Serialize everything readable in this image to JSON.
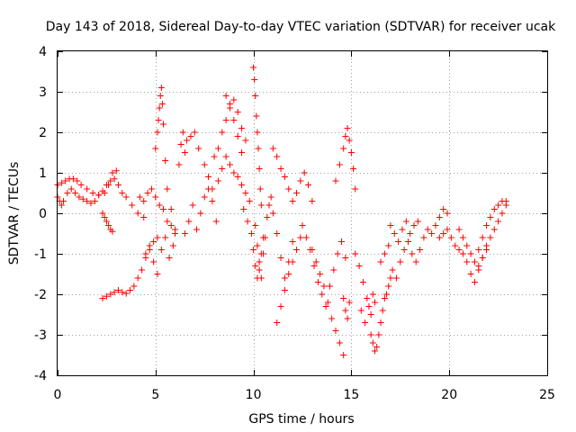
{
  "chart_data": {
    "type": "scatter",
    "title": "Day 143 of 2018, Sidereal Day-to-day VTEC variation (SDTVAR) for receiver ucak",
    "xlabel": "GPS time / hours",
    "ylabel": "SDTVAR / TECUs",
    "xlim": [
      0,
      25
    ],
    "ylim": [
      -4,
      4
    ],
    "xticks": [
      0,
      5,
      10,
      15,
      20,
      25
    ],
    "yticks": [
      -4,
      -3,
      -2,
      -1,
      0,
      1,
      2,
      3,
      4
    ],
    "grid": true,
    "marker": "+",
    "series": [
      {
        "name": "SDTVAR",
        "color": "#ff0000",
        "x": [
          0.0,
          0.1,
          0.2,
          0.3,
          0.5,
          0.7,
          0.9,
          1.1,
          1.3,
          1.5,
          1.7,
          1.9,
          2.1,
          2.3,
          2.5,
          2.7,
          2.9,
          3.1,
          3.3,
          3.5,
          3.8,
          4.1,
          4.4,
          0.0,
          0.2,
          0.4,
          0.6,
          0.8,
          1.0,
          1.2,
          1.5,
          1.8,
          2.1,
          2.4,
          2.6,
          2.8,
          3.0,
          2.3,
          2.5,
          2.7,
          2.9,
          3.1,
          3.3,
          3.5,
          3.7,
          3.9,
          4.1,
          4.3,
          4.5,
          4.7,
          4.9,
          5.1,
          2.3,
          2.4,
          2.5,
          2.6,
          2.7,
          2.8,
          4.2,
          4.4,
          4.6,
          4.8,
          5.0,
          5.2,
          5.4,
          5.6,
          5.8,
          6.0,
          4.5,
          4.7,
          4.9,
          5.1,
          5.3,
          5.5,
          5.7,
          5.9,
          5.0,
          5.1,
          5.15,
          5.2,
          5.25,
          5.3,
          5.35,
          5.4,
          5.5,
          5.6,
          5.8,
          6.0,
          6.2,
          6.3,
          6.4,
          6.5,
          6.6,
          6.8,
          7.0,
          7.2,
          7.5,
          7.7,
          7.9,
          6.5,
          6.7,
          6.9,
          7.1,
          7.3,
          7.5,
          7.7,
          7.9,
          8.1,
          8.0,
          8.2,
          8.4,
          8.6,
          8.8,
          9.0,
          9.2,
          9.4,
          9.6,
          8.2,
          8.4,
          8.6,
          8.8,
          9.0,
          9.2,
          9.4,
          9.6,
          9.8,
          8.6,
          8.8,
          9.0,
          9.2,
          9.4,
          9.5,
          9.7,
          9.9,
          10.0,
          10.1,
          10.2,
          10.3,
          10.4,
          10.5,
          10.0,
          10.05,
          10.1,
          10.15,
          10.2,
          10.25,
          10.3,
          10.35,
          10.4,
          10.1,
          10.2,
          10.3,
          10.4,
          10.5,
          10.6,
          10.7,
          10.8,
          10.9,
          11.0,
          11.2,
          11.4,
          11.6,
          11.8,
          12.0,
          11.0,
          11.2,
          11.4,
          11.6,
          11.8,
          12.0,
          12.2,
          12.4,
          12.6,
          12.8,
          13.0,
          11.2,
          11.4,
          11.6,
          11.8,
          12.0,
          12.2,
          12.4,
          12.5,
          12.7,
          12.9,
          13.1,
          13.3,
          13.5,
          13.7,
          13.9,
          14.1,
          14.3,
          14.5,
          14.7,
          13.0,
          13.2,
          13.4,
          13.6,
          13.8,
          14.0,
          14.2,
          14.4,
          14.6,
          14.2,
          14.4,
          14.6,
          14.7,
          14.8,
          14.9,
          15.0,
          15.1,
          15.2,
          14.6,
          14.7,
          14.8,
          14.9,
          15.2,
          15.4,
          15.6,
          15.8,
          16.0,
          16.2,
          15.5,
          15.7,
          15.9,
          16.1,
          16.0,
          16.1,
          16.2,
          16.3,
          16.4,
          16.5,
          16.6,
          16.7,
          16.8,
          16.9,
          17.0,
          16.5,
          16.7,
          16.9,
          17.1,
          17.3,
          17.5,
          17.7,
          17.9,
          18.1,
          18.3,
          18.5,
          18.7,
          18.9,
          19.1,
          19.3,
          19.5,
          19.7,
          19.9,
          17.0,
          17.2,
          17.4,
          17.6,
          17.8,
          18.0,
          18.2,
          18.4,
          19.5,
          19.7,
          19.9,
          20.1,
          20.3,
          20.5,
          20.7,
          20.9,
          21.1,
          21.3,
          21.5,
          21.7,
          21.9,
          20.5,
          20.7,
          20.9,
          21.1,
          21.3,
          21.5,
          21.7,
          21.9,
          22.1,
          22.3,
          22.5,
          22.7,
          22.9,
          21.5,
          21.7,
          21.9,
          22.1,
          22.3,
          22.5,
          22.7,
          22.9
        ],
        "y": [
          0.4,
          0.3,
          0.2,
          0.3,
          0.5,
          0.6,
          0.5,
          0.4,
          0.35,
          0.3,
          0.25,
          0.3,
          0.45,
          0.55,
          0.7,
          0.8,
          0.85,
          0.7,
          0.5,
          0.4,
          0.2,
          0.0,
          -0.1,
          0.7,
          0.75,
          0.8,
          0.85,
          0.85,
          0.8,
          0.7,
          0.6,
          0.5,
          0.45,
          0.5,
          0.7,
          1.0,
          1.05,
          -2.1,
          -2.05,
          -2.0,
          -1.95,
          -1.9,
          -1.95,
          -1.98,
          -1.9,
          -1.8,
          -1.6,
          -1.4,
          -1.1,
          -0.9,
          -0.7,
          -0.6,
          0.0,
          -0.1,
          -0.2,
          -0.3,
          -0.4,
          -0.45,
          0.4,
          0.3,
          0.5,
          0.6,
          0.4,
          0.2,
          0.1,
          -0.2,
          -0.3,
          -0.5,
          -1.0,
          -0.8,
          -1.2,
          -1.5,
          -0.9,
          -0.6,
          -1.1,
          -0.8,
          1.6,
          2.0,
          2.3,
          2.6,
          2.9,
          3.1,
          2.7,
          2.2,
          1.3,
          0.6,
          0.1,
          -0.4,
          1.2,
          1.7,
          2.0,
          1.5,
          1.8,
          1.9,
          2.0,
          1.6,
          1.2,
          0.9,
          0.6,
          -0.5,
          -0.2,
          0.2,
          -0.4,
          0.0,
          0.4,
          0.6,
          0.3,
          -0.2,
          1.4,
          1.6,
          2.0,
          2.3,
          2.6,
          2.8,
          2.5,
          2.1,
          1.8,
          0.8,
          1.1,
          1.4,
          1.2,
          1.0,
          0.9,
          0.7,
          0.5,
          0.3,
          2.9,
          2.7,
          2.3,
          1.9,
          1.5,
          0.1,
          -0.2,
          -0.5,
          -0.9,
          -1.3,
          -1.6,
          -1.4,
          -1.0,
          -0.6,
          3.6,
          3.3,
          2.9,
          2.4,
          2.0,
          1.6,
          1.1,
          0.6,
          0.2,
          -0.3,
          -0.8,
          -1.2,
          -1.6,
          -1.0,
          -0.6,
          -0.1,
          0.2,
          0.4,
          0.0,
          -0.5,
          -1.1,
          -1.6,
          -1.2,
          -0.7,
          1.6,
          1.4,
          1.1,
          0.9,
          0.6,
          0.3,
          0.5,
          0.8,
          1.0,
          0.7,
          0.3,
          -2.7,
          -2.3,
          -1.9,
          -1.5,
          -1.2,
          -0.9,
          -0.6,
          -0.3,
          -0.6,
          -0.9,
          -1.3,
          -1.7,
          -2.0,
          -2.3,
          -1.8,
          -1.4,
          -1.0,
          -0.7,
          -1.1,
          -0.9,
          -1.2,
          -1.5,
          -1.8,
          -2.2,
          -2.6,
          -2.9,
          -3.2,
          -3.5,
          0.8,
          1.2,
          1.6,
          1.9,
          2.1,
          1.8,
          1.5,
          1.1,
          0.6,
          -2.1,
          -2.4,
          -2.6,
          -2.2,
          -1.0,
          -1.3,
          -1.7,
          -2.1,
          -2.5,
          -2.2,
          -2.4,
          -2.7,
          -2.3,
          -2.0,
          -3.0,
          -3.2,
          -3.4,
          -3.3,
          -3.0,
          -2.7,
          -2.4,
          -2.1,
          -2.0,
          -1.8,
          -1.6,
          -1.2,
          -1.0,
          -0.8,
          -1.4,
          -1.6,
          -1.2,
          -0.9,
          -0.7,
          -1.0,
          -1.2,
          -0.9,
          -0.6,
          -0.4,
          -0.5,
          -0.3,
          -0.1,
          0.1,
          0.0,
          -0.3,
          -0.5,
          -0.7,
          -0.4,
          -0.2,
          -0.5,
          -0.3,
          -0.2,
          -0.6,
          -0.5,
          -0.4,
          -0.6,
          -0.8,
          -0.9,
          -1.0,
          -1.2,
          -1.5,
          -1.7,
          -1.4,
          -1.1,
          -0.9,
          -0.4,
          -0.6,
          -0.8,
          -1.0,
          -1.2,
          -0.9,
          -0.6,
          -0.3,
          -0.1,
          0.1,
          0.2,
          0.3,
          0.3,
          -1.3,
          -1.1,
          -0.8,
          -0.6,
          -0.4,
          -0.2,
          0.0,
          0.2
        ]
      }
    ]
  }
}
